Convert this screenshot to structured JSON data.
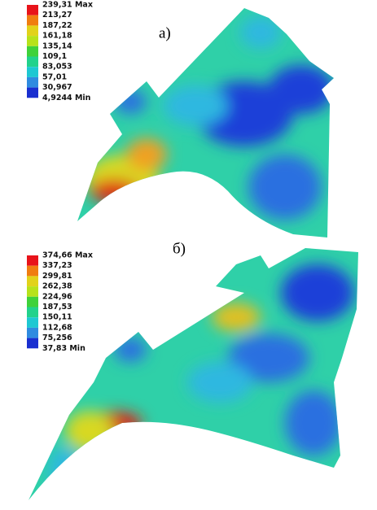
{
  "panels": [
    {
      "label": "а)",
      "legend": [
        "239,31 Max",
        "213,27",
        "187,22",
        "161,18",
        "135,14",
        "109,1",
        "83,053",
        "57,01",
        "30,967",
        "4,9244 Min"
      ],
      "colors": [
        "#e8131a",
        "#f07d10",
        "#e2d21a",
        "#b7e21a",
        "#3fd23a",
        "#22d28c",
        "#1ec8d2",
        "#2f8be0",
        "#1a2fd0"
      ]
    },
    {
      "label": "б)",
      "legend": [
        "374,66 Max",
        "337,23",
        "299,81",
        "262,38",
        "224,96",
        "187,53",
        "150,11",
        "112,68",
        "75,256",
        "37,83 Min"
      ],
      "colors": [
        "#e8131a",
        "#f07d10",
        "#e2d21a",
        "#b7e21a",
        "#3fd23a",
        "#22d28c",
        "#1ec8d2",
        "#2f8be0",
        "#1a2fd0"
      ]
    }
  ]
}
